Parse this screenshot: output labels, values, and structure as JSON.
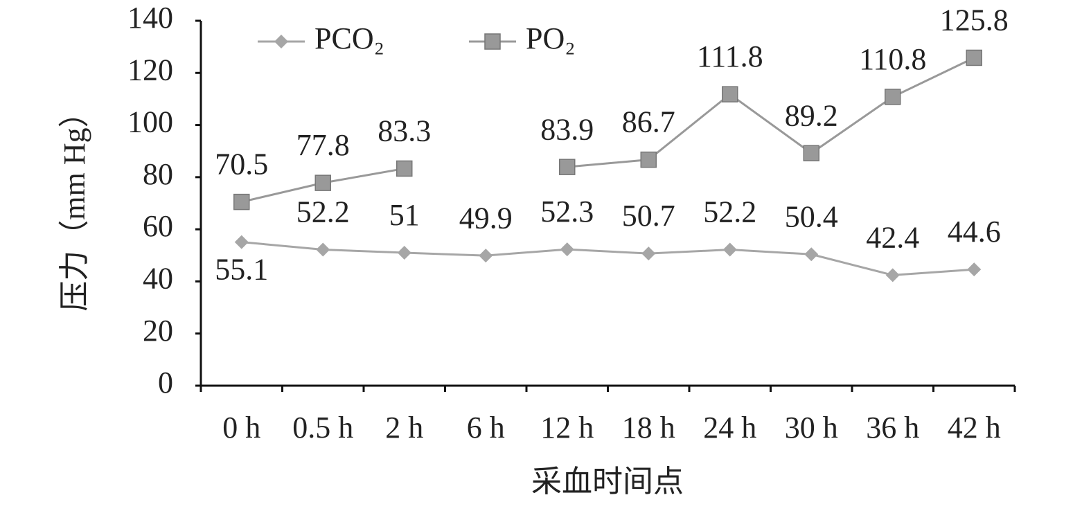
{
  "chart_data": {
    "type": "line",
    "y_label": "压力（mm Hg）",
    "x_label": "采血时间点",
    "categories": [
      "0 h",
      "0.5 h",
      "2 h",
      "6 h",
      "12 h",
      "18 h",
      "24 h",
      "30 h",
      "36 h",
      "42 h"
    ],
    "series": [
      {
        "name": "PCO₂",
        "color": "#a6a6a6",
        "marker": "diamond",
        "values": [
          55.1,
          52.2,
          51,
          49.9,
          52.3,
          50.7,
          52.2,
          50.4,
          42.4,
          44.6
        ]
      },
      {
        "name": "PO₂",
        "color": "#999999",
        "marker": "square",
        "values": [
          70.5,
          77.8,
          83.3,
          null,
          83.9,
          86.7,
          111.8,
          89.2,
          110.8,
          125.8
        ]
      }
    ],
    "ylim": [
      0,
      140
    ],
    "yticks": [
      0,
      20,
      40,
      60,
      80,
      100,
      120,
      140
    ]
  }
}
